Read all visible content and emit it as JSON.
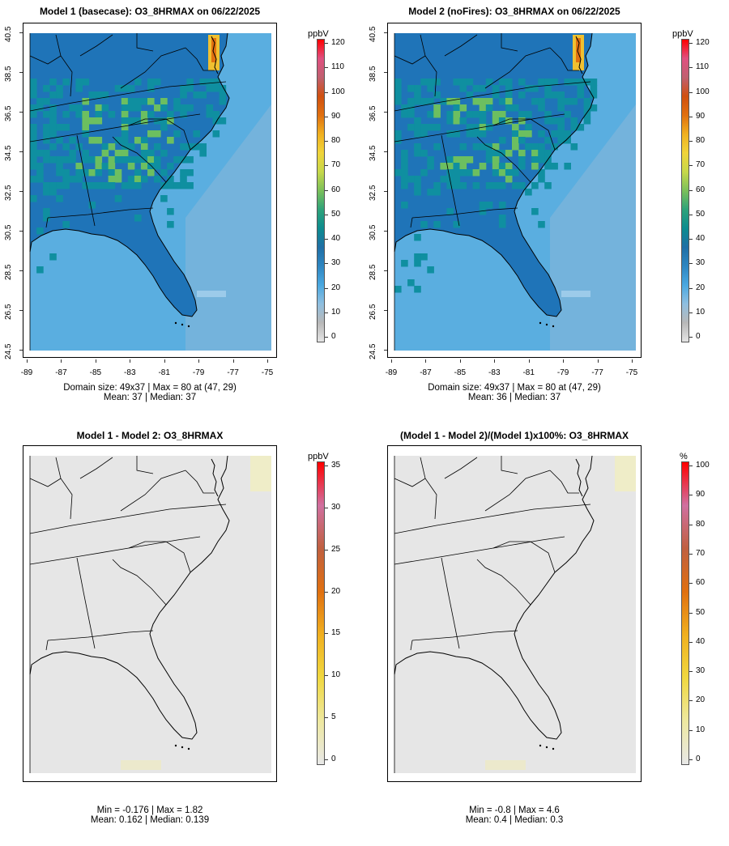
{
  "panels": [
    {
      "title": "Model 1 (basecase): O3_8HRMAX on 06/22/2025",
      "unit": "ppbV",
      "kind": "conc",
      "colorbar_ticks": [
        "120",
        "110",
        "100",
        "90",
        "80",
        "70",
        "60",
        "50",
        "40",
        "30",
        "20",
        "10",
        "0"
      ],
      "stats_line1": "Domain size: 49x37 | Max = 80 at (47, 29)",
      "stats_line2": "Mean: 37 |  Median: 37",
      "show_axes": true
    },
    {
      "title": "Model 2 (noFires): O3_8HRMAX on 06/22/2025",
      "unit": "ppbV",
      "kind": "conc",
      "colorbar_ticks": [
        "120",
        "110",
        "100",
        "90",
        "80",
        "70",
        "60",
        "50",
        "40",
        "30",
        "20",
        "10",
        "0"
      ],
      "stats_line1": "Domain size: 49x37 | Max = 80 at (47, 29)",
      "stats_line2": "Mean: 36 |  Median: 37",
      "show_axes": true
    },
    {
      "title": "Model 1 - Model 2: O3_8HRMAX",
      "unit": "ppbV",
      "kind": "diff",
      "colorbar_ticks": [
        "35",
        "30",
        "25",
        "20",
        "15",
        "10",
        "5",
        "0"
      ],
      "stats_line1": "Min = -0.176 | Max = 1.82",
      "stats_line2": "Mean: 0.162 |  Median: 0.139",
      "show_axes": false
    },
    {
      "title": "(Model 1 - Model 2)/(Model 1)x100%: O3_8HRMAX",
      "unit": "%",
      "kind": "pct",
      "colorbar_ticks": [
        "100",
        "90",
        "80",
        "70",
        "60",
        "50",
        "40",
        "30",
        "20",
        "10",
        "0"
      ],
      "stats_line1": "Min = -0.8 | Max = 4.6",
      "stats_line2": "Mean: 0.4 |  Median: 0.3",
      "show_axes": false
    }
  ],
  "lat_ticks": [
    "40.5",
    "38.5",
    "36.5",
    "34.5",
    "32.5",
    "30.5",
    "28.5",
    "26.5",
    "24.5"
  ],
  "lon_ticks": [
    "-89",
    "-87",
    "-85",
    "-83",
    "-81",
    "-79",
    "-77",
    "-75"
  ],
  "colors": {
    "conc_scale": [
      "#e4e4e4",
      "#b8b8b8",
      "#8fbfe0",
      "#4aa8e0",
      "#2e86c1",
      "#1f6fa6",
      "#0d8c8f",
      "#2ea37a",
      "#7bc05a",
      "#c7d84a",
      "#f0d43a",
      "#f0b020",
      "#e07010",
      "#d05010",
      "#c06070",
      "#e05080",
      "#ff0000"
    ],
    "diff_scale": [
      "#e8e8e8",
      "#eee8a0",
      "#f0d840",
      "#f0b020",
      "#e07010",
      "#c06040",
      "#d070a0",
      "#ff0000"
    ],
    "ocean": "#5aaee0",
    "ocean_far": "#8ab8d8",
    "land_low": "#1f74b8",
    "land_mid": "#0f8fa0",
    "land_high": "#6cbf60",
    "diff_bg": "#e6e6e6"
  }
}
